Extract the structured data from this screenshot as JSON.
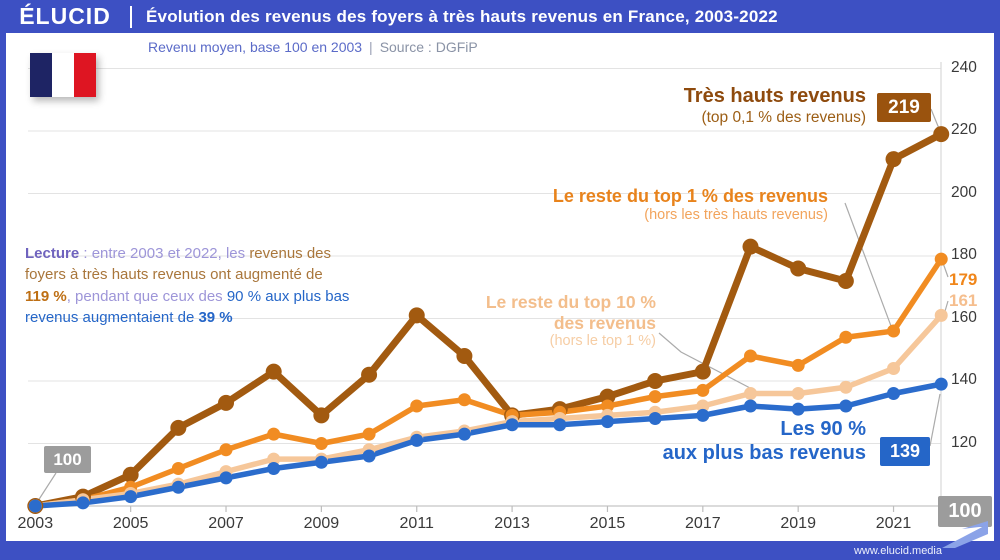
{
  "header": {
    "logo": "ÉLUCID",
    "title": "Évolution des revenus des foyers à très hauts revenus en France, 2003-2022"
  },
  "subtitle": {
    "text": "Revenu moyen, base 100 en 2003",
    "separator": "|",
    "source": "Source : DGFiP"
  },
  "colors": {
    "brand_blue": "#3D50C3",
    "grid": "#E3E3E3",
    "axis_text": "#3A3A3A",
    "gray_badge": "#9C9C9C",
    "flag_blue": "#1E2464",
    "flag_white": "#FFFFFF",
    "flag_red": "#DE1522"
  },
  "lecture": {
    "segments": [
      {
        "t": "Lecture",
        "c": "c-purpleb"
      },
      {
        "t": " : entre 2003 et 2022, les ",
        "c": "c-purple"
      },
      {
        "t": "revenus des foyers à très hauts revenus ont augmenté de ",
        "c": "c-brown"
      },
      {
        "t": "119 %",
        "c": "c-brownb"
      },
      {
        "t": ", pendant que ceux des ",
        "c": "c-purple"
      },
      {
        "t": "90 % aux plus bas revenus augmentaient de ",
        "c": "c-blue"
      },
      {
        "t": "39 %",
        "c": "c-blueb"
      }
    ]
  },
  "footer": {
    "url": "www.elucid.media"
  },
  "chart_data": {
    "type": "line",
    "title": "Évolution des revenus des foyers à très hauts revenus en France, 2003-2022",
    "xlabel": "",
    "ylabel": "Revenu moyen, base 100 en 2003",
    "ylim": [
      100,
      240
    ],
    "y_ticks": [
      100,
      120,
      140,
      160,
      180,
      200,
      220,
      240
    ],
    "x": [
      2003,
      2004,
      2005,
      2006,
      2007,
      2008,
      2009,
      2010,
      2011,
      2012,
      2013,
      2014,
      2015,
      2016,
      2017,
      2018,
      2019,
      2020,
      2021,
      2022
    ],
    "x_tick_labels": [
      2003,
      2005,
      2007,
      2009,
      2011,
      2013,
      2015,
      2017,
      2019,
      2021
    ],
    "grid": true,
    "legend_position": "inline-labels",
    "start_label": "100",
    "baseline_label": "100",
    "series": [
      {
        "name": "Très hauts revenus (top 0,1 % des revenus)",
        "label_lines": [
          "Très hauts revenus"
        ],
        "sub": "(top 0,1 % des revenus)",
        "color": "#A25A10",
        "label_color": "#8E4A0D",
        "sub_color": "#9C5E15",
        "badge_color": "#9A530E",
        "end_label": "219",
        "values": [
          100,
          103,
          110,
          125,
          133,
          143,
          129,
          142,
          161,
          148,
          129,
          131,
          135,
          140,
          143,
          183,
          176,
          172,
          211,
          219
        ]
      },
      {
        "name": "Le reste du top 1 % des revenus (hors les très hauts revenus)",
        "label_lines": [
          "Le reste du top 1 % des revenus"
        ],
        "sub": "(hors les très hauts revenus)",
        "color": "#F18C22",
        "label_color": "#E8831C",
        "sub_color": "#F2A45C",
        "end_color": "#F0861A",
        "end_label": "179",
        "values": [
          100,
          102,
          106,
          112,
          118,
          123,
          120,
          123,
          132,
          134,
          129,
          130,
          132,
          135,
          137,
          148,
          145,
          154,
          156,
          179
        ]
      },
      {
        "name": "Le reste du top 10 % des revenus (hors le top 1 %)",
        "label_lines": [
          "Le reste du top 10 %",
          "des revenus"
        ],
        "sub": "(hors le top 1 %)",
        "color": "#F6C79A",
        "label_color": "#F3BE8C",
        "sub_color": "#F6CDA4",
        "end_color": "#F5BE8E",
        "end_label": "161",
        "values": [
          100,
          102,
          104,
          107,
          111,
          115,
          115,
          118,
          122,
          124,
          127,
          128,
          129,
          130,
          132,
          136,
          136,
          138,
          144,
          161
        ]
      },
      {
        "name": "Les 90 % aux plus bas revenus",
        "label_lines": [
          "Les 90 %",
          "aux plus bas revenus"
        ],
        "sub": null,
        "color": "#2B6CCC",
        "label_color": "#2566C8",
        "badge_color": "#2566C8",
        "end_label": "139",
        "values": [
          100,
          101,
          103,
          106,
          109,
          112,
          114,
          116,
          121,
          123,
          126,
          126,
          127,
          128,
          129,
          132,
          131,
          132,
          136,
          139
        ]
      }
    ]
  }
}
